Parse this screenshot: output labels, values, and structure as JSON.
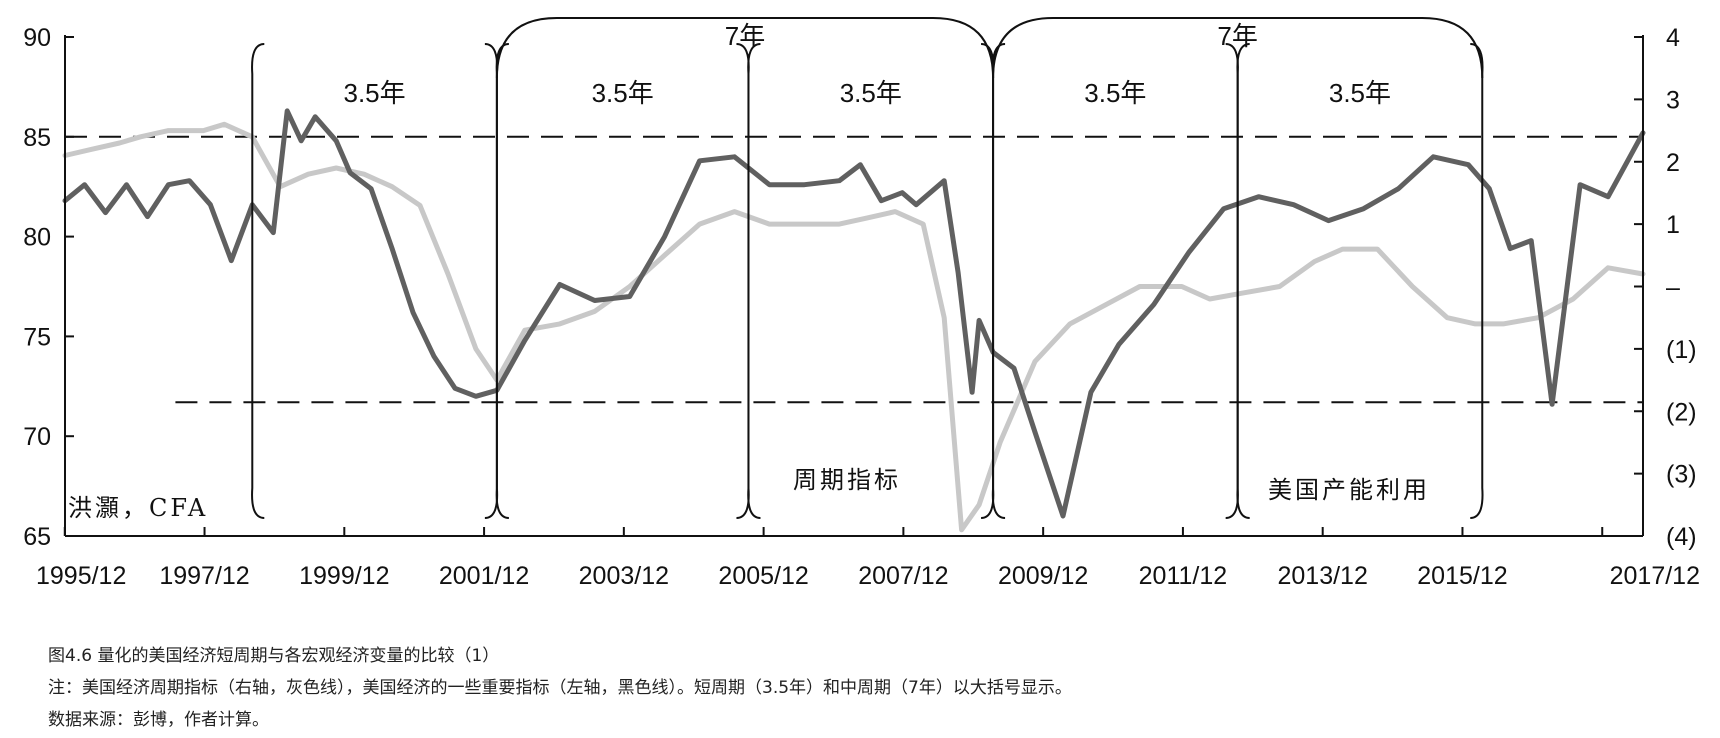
{
  "chart_data": {
    "type": "line",
    "title": "",
    "x_ticks": [
      "1995/12",
      "1997/12",
      "1999/12",
      "2001/12",
      "2003/12",
      "2005/12",
      "2007/12",
      "2009/12",
      "2011/12",
      "2013/12",
      "2015/12",
      "2017/12"
    ],
    "x_range": [
      1995.92,
      2018.5
    ],
    "y_left": {
      "range": [
        65,
        90
      ],
      "ticks": [
        "65",
        "70",
        "75",
        "80",
        "85",
        "90"
      ]
    },
    "y_right": {
      "range": [
        -4,
        4
      ],
      "ticks": [
        "(4)",
        "(3)",
        "(2)",
        "(1)",
        "–",
        "1",
        "2",
        "3",
        "4"
      ]
    },
    "reference_lines": [
      {
        "axis": "left",
        "value": 85,
        "x_start": 1995.92
      },
      {
        "axis": "left",
        "value": 71.7,
        "x_start": 1997.5
      }
    ],
    "short_cycles": [
      {
        "label": "3.5年",
        "start": 1998.6,
        "end": 2002.1
      },
      {
        "label": "3.5年",
        "start": 2002.1,
        "end": 2005.7
      },
      {
        "label": "3.5年",
        "start": 2005.7,
        "end": 2009.2
      },
      {
        "label": "3.5年",
        "start": 2009.2,
        "end": 2012.7
      },
      {
        "label": "3.5年",
        "start": 2012.7,
        "end": 2016.2
      }
    ],
    "mid_cycles": [
      {
        "label": "7年",
        "start": 2002.1,
        "end": 2009.2
      },
      {
        "label": "7年",
        "start": 2009.2,
        "end": 2016.2
      }
    ],
    "annotations": {
      "author": "洪灝，CFA",
      "gray_label": "周期指标",
      "dark_label": "美国产能利用"
    },
    "series": [
      {
        "name": "周期指标",
        "axis": "right",
        "color": "#c8c8c8",
        "x": [
          1995.92,
          1996.3,
          1996.7,
          1997.0,
          1997.4,
          1997.9,
          1998.2,
          1998.6,
          1999.0,
          1999.4,
          1999.8,
          2000.2,
          2000.6,
          2001.0,
          2001.4,
          2001.8,
          2002.1,
          2002.5,
          2003.0,
          2003.5,
          2004.0,
          2004.5,
          2005.0,
          2005.5,
          2006.0,
          2006.5,
          2007.0,
          2007.4,
          2007.8,
          2008.2,
          2008.5,
          2008.75,
          2009.0,
          2009.3,
          2009.8,
          2010.3,
          2010.8,
          2011.3,
          2011.9,
          2012.3,
          2012.8,
          2013.3,
          2013.8,
          2014.2,
          2014.7,
          2015.2,
          2015.7,
          2016.1,
          2016.5,
          2017.0,
          2017.5,
          2018.0,
          2018.5
        ],
        "y": [
          2.1,
          2.2,
          2.3,
          2.4,
          2.5,
          2.5,
          2.6,
          2.4,
          1.6,
          1.8,
          1.9,
          1.8,
          1.6,
          1.3,
          0.2,
          -1.0,
          -1.5,
          -0.7,
          -0.6,
          -0.4,
          0.0,
          0.5,
          1.0,
          1.2,
          1.0,
          1.0,
          1.0,
          1.1,
          1.2,
          1.0,
          -0.5,
          -3.9,
          -3.5,
          -2.5,
          -1.2,
          -0.6,
          -0.3,
          0.0,
          0.0,
          -0.2,
          -0.1,
          0.0,
          0.4,
          0.6,
          0.6,
          0.0,
          -0.5,
          -0.6,
          -0.6,
          -0.5,
          -0.2,
          0.3,
          0.2
        ]
      },
      {
        "name": "美国产能利用",
        "axis": "left",
        "color": "#606060",
        "x": [
          1995.92,
          1996.2,
          1996.5,
          1996.8,
          1997.1,
          1997.4,
          1997.7,
          1998.0,
          1998.3,
          1998.6,
          1998.9,
          1999.1,
          1999.3,
          1999.5,
          1999.8,
          2000.0,
          2000.3,
          2000.6,
          2000.9,
          2001.2,
          2001.5,
          2001.8,
          2002.1,
          2002.5,
          2003.0,
          2003.5,
          2004.0,
          2004.5,
          2005.0,
          2005.5,
          2006.0,
          2006.5,
          2007.0,
          2007.3,
          2007.6,
          2007.9,
          2008.1,
          2008.3,
          2008.5,
          2008.7,
          2008.9,
          2009.0,
          2009.2,
          2009.5,
          2009.8,
          2010.2,
          2010.6,
          2011.0,
          2011.5,
          2012.0,
          2012.5,
          2013.0,
          2013.5,
          2014.0,
          2014.5,
          2015.0,
          2015.5,
          2016.0,
          2016.3,
          2016.6,
          2016.9,
          2017.2,
          2017.6,
          2018.0,
          2018.5
        ],
        "y": [
          81.8,
          82.6,
          81.2,
          82.6,
          81.0,
          82.6,
          82.8,
          81.6,
          78.8,
          81.6,
          80.2,
          86.3,
          84.8,
          86.0,
          84.8,
          83.2,
          82.4,
          79.4,
          76.2,
          74.0,
          72.4,
          72.0,
          72.3,
          74.8,
          77.6,
          76.8,
          77.0,
          80.0,
          83.8,
          84.0,
          82.6,
          82.6,
          82.8,
          83.6,
          81.8,
          82.2,
          81.6,
          82.2,
          82.8,
          78.2,
          72.2,
          75.8,
          74.2,
          73.4,
          70.2,
          66.0,
          72.2,
          74.6,
          76.6,
          79.2,
          81.4,
          82.0,
          81.6,
          80.8,
          81.4,
          82.4,
          84.0,
          83.6,
          82.4,
          79.4,
          79.8,
          71.6,
          82.6,
          82.0,
          85.2
        ]
      }
    ]
  },
  "caption": {
    "title": "图4.6 量化的美国经济短周期与各宏观经济变量的比较（1）",
    "note": "注：美国经济周期指标（右轴，灰色线），美国经济的一些重要指标（左轴，黑色线）。短周期（3.5年）和中周期（7年）以大括号显示。",
    "source": "数据来源：彭博，作者计算。"
  }
}
